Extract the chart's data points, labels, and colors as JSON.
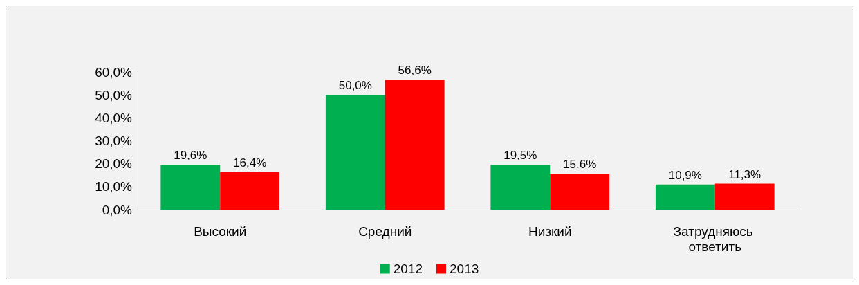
{
  "chart_data": {
    "type": "bar",
    "categories": [
      "Высокий",
      "Средний",
      "Низкий",
      "Затрудняюсь ответить"
    ],
    "series": [
      {
        "name": "2012",
        "color": "#00b050",
        "values": [
          19.6,
          50.0,
          19.5,
          10.9
        ],
        "value_labels": [
          "19,6%",
          "50,0%",
          "19,5%",
          "10,9%"
        ]
      },
      {
        "name": "2013",
        "color": "#ff0000",
        "values": [
          16.4,
          56.6,
          15.6,
          11.3
        ],
        "value_labels": [
          "16,4%",
          "56,6%",
          "15,6%",
          "11,3%"
        ]
      }
    ],
    "ylim": [
      0,
      60
    ],
    "yticks": [
      {
        "value": 0,
        "label": "0,0%"
      },
      {
        "value": 10,
        "label": "10,0%"
      },
      {
        "value": 20,
        "label": "20,0%"
      },
      {
        "value": 30,
        "label": "30,0%"
      },
      {
        "value": 40,
        "label": "40,0%"
      },
      {
        "value": 50,
        "label": "50,0%"
      },
      {
        "value": 60,
        "label": "60,0%"
      }
    ],
    "grid": false,
    "legend": "bottom"
  }
}
